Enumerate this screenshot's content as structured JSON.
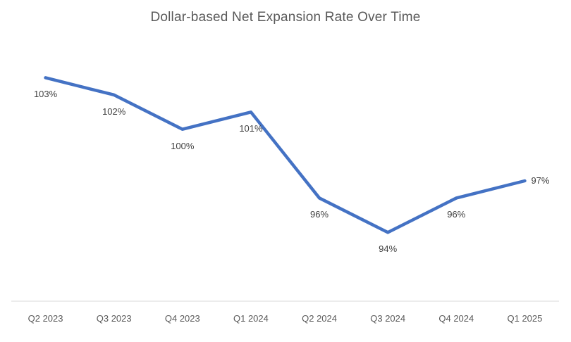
{
  "chart_data": {
    "type": "line",
    "title": "Dollar-based Net Expansion Rate Over Time",
    "categories": [
      "Q2 2023",
      "Q3 2023",
      "Q4 2023",
      "Q1 2024",
      "Q2 2024",
      "Q3 2024",
      "Q4 2024",
      "Q1 2025"
    ],
    "series": [
      {
        "name": "Dollar-based Net Expansion Rate",
        "values": [
          103,
          102,
          100,
          101,
          96,
          94,
          96,
          97
        ],
        "data_labels": [
          "103%",
          "102%",
          "100%",
          "101%",
          "96%",
          "94%",
          "96%",
          "97%"
        ],
        "label_positions": [
          "below",
          "below",
          "below",
          "below",
          "below",
          "below",
          "below",
          "right"
        ]
      }
    ],
    "xlabel": "",
    "ylabel": "",
    "ylim": [
      90,
      104
    ],
    "grid": false,
    "legend": "none",
    "colors": {
      "line": "#4472C4",
      "title_text": "#595959",
      "axis_line": "#D9D9D9",
      "data_label_text": "#404040",
      "tick_label_text": "#595959",
      "background": "#FFFFFF"
    }
  }
}
